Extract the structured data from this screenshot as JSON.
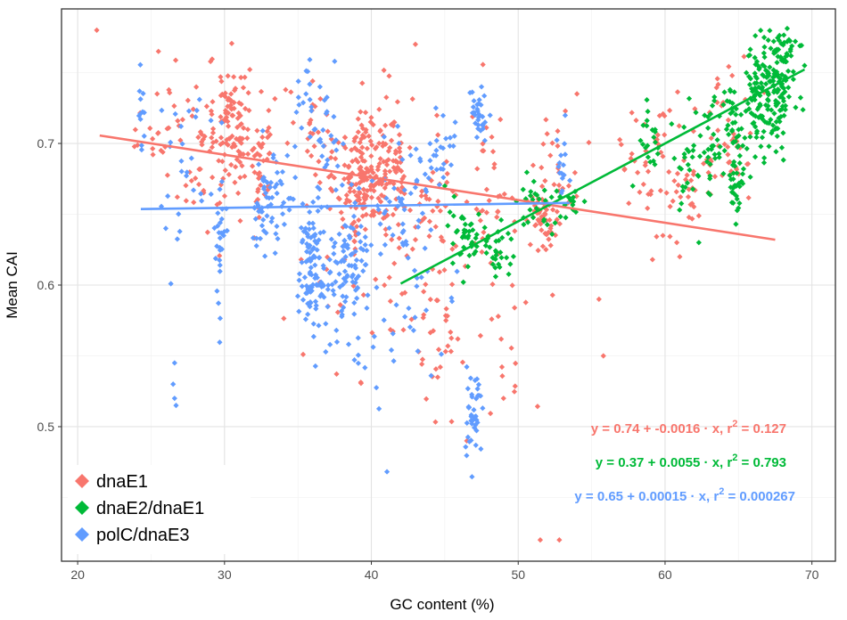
{
  "chart_data": {
    "type": "scatter",
    "xlabel": "GC content (%)",
    "ylabel": "Mean CAI",
    "xlim": [
      18.9,
      71.6
    ],
    "ylim": [
      0.405,
      0.795
    ],
    "x_ticks": [
      20,
      30,
      40,
      50,
      60,
      70
    ],
    "y_ticks": [
      0.5,
      0.6,
      0.7
    ],
    "y_tick_labels": [
      "0.5",
      "0.6",
      "0.7"
    ],
    "grid": true,
    "legend_position": "bottom-left",
    "series": [
      {
        "name": "dnaE1",
        "color": "#F8766D",
        "fit": {
          "intercept": 0.74,
          "slope": -0.0016,
          "x_range": [
            21.5,
            67.5
          ]
        },
        "equation": {
          "y_eq": "y = 0.74 + -0.0016 · x, ",
          "r_label": "r",
          "r_exp": "2",
          "r_val": " = 0.127"
        },
        "clusters": [
          {
            "cx": 30.5,
            "cy": 0.715,
            "sx": 0.6,
            "sy": 0.022,
            "n": 90
          },
          {
            "cx": 28.5,
            "cy": 0.7,
            "sx": 1.4,
            "sy": 0.03,
            "n": 55
          },
          {
            "cx": 32.5,
            "cy": 0.685,
            "sx": 0.4,
            "sy": 0.02,
            "n": 40
          },
          {
            "cx": 39.5,
            "cy": 0.675,
            "sx": 0.9,
            "sy": 0.025,
            "n": 170
          },
          {
            "cx": 41.5,
            "cy": 0.69,
            "sx": 0.6,
            "sy": 0.022,
            "n": 60
          },
          {
            "cx": 36.0,
            "cy": 0.7,
            "sx": 1.0,
            "sy": 0.02,
            "n": 30
          },
          {
            "cx": 44.5,
            "cy": 0.665,
            "sx": 1.2,
            "sy": 0.03,
            "n": 40
          },
          {
            "cx": 48.0,
            "cy": 0.665,
            "sx": 0.6,
            "sy": 0.03,
            "n": 35
          },
          {
            "cx": 51.5,
            "cy": 0.645,
            "sx": 0.6,
            "sy": 0.01,
            "n": 40
          },
          {
            "cx": 52.5,
            "cy": 0.675,
            "sx": 0.8,
            "sy": 0.025,
            "n": 40
          },
          {
            "cx": 42.5,
            "cy": 0.6,
            "sx": 1.2,
            "sy": 0.03,
            "n": 30
          },
          {
            "cx": 45.0,
            "cy": 0.55,
            "sx": 1.0,
            "sy": 0.025,
            "n": 22
          },
          {
            "cx": 49.0,
            "cy": 0.55,
            "sx": 1.0,
            "sy": 0.03,
            "n": 15
          },
          {
            "cx": 25.5,
            "cy": 0.72,
            "sx": 1.0,
            "sy": 0.025,
            "n": 18
          },
          {
            "cx": 58.0,
            "cy": 0.69,
            "sx": 0.6,
            "sy": 0.02,
            "n": 15
          },
          {
            "cx": 61.0,
            "cy": 0.68,
            "sx": 1.2,
            "sy": 0.025,
            "n": 60
          },
          {
            "cx": 64.5,
            "cy": 0.71,
            "sx": 1.0,
            "sy": 0.025,
            "n": 40
          },
          {
            "cx": 37.5,
            "cy": 0.6,
            "sx": 1.5,
            "sy": 0.04,
            "n": 20
          }
        ],
        "points": [
          [
            21.3,
            0.78
          ],
          [
            25.5,
            0.765
          ],
          [
            43.0,
            0.77
          ],
          [
            51.5,
            0.42
          ],
          [
            52.8,
            0.42
          ],
          [
            46.5,
            0.49
          ],
          [
            49.0,
            0.52
          ],
          [
            55.5,
            0.59
          ],
          [
            55.8,
            0.55
          ],
          [
            54.0,
            0.735
          ],
          [
            61.0,
            0.62
          ],
          [
            60.8,
            0.63
          ]
        ]
      },
      {
        "name": "dnaE2/dnaE1",
        "color": "#00BA38",
        "fit": {
          "intercept": 0.37,
          "slope": 0.0055,
          "x_range": [
            42.0,
            69.5
          ]
        },
        "equation": {
          "y_eq": "y = 0.37 + 0.0055 · x, ",
          "r_label": "r",
          "r_exp": "2",
          "r_val": " = 0.793"
        },
        "clusters": [
          {
            "cx": 67.5,
            "cy": 0.74,
            "sx": 0.7,
            "sy": 0.02,
            "n": 130
          },
          {
            "cx": 66.0,
            "cy": 0.725,
            "sx": 0.6,
            "sy": 0.02,
            "n": 60
          },
          {
            "cx": 68.3,
            "cy": 0.765,
            "sx": 0.4,
            "sy": 0.01,
            "n": 25
          },
          {
            "cx": 64.5,
            "cy": 0.705,
            "sx": 0.5,
            "sy": 0.02,
            "n": 40
          },
          {
            "cx": 63.0,
            "cy": 0.7,
            "sx": 0.5,
            "sy": 0.02,
            "n": 25
          },
          {
            "cx": 61.5,
            "cy": 0.685,
            "sx": 0.5,
            "sy": 0.02,
            "n": 25
          },
          {
            "cx": 64.8,
            "cy": 0.67,
            "sx": 0.3,
            "sy": 0.012,
            "n": 22
          },
          {
            "cx": 59.0,
            "cy": 0.7,
            "sx": 0.4,
            "sy": 0.012,
            "n": 20
          },
          {
            "cx": 46.5,
            "cy": 0.635,
            "sx": 0.7,
            "sy": 0.015,
            "n": 40
          },
          {
            "cx": 48.5,
            "cy": 0.625,
            "sx": 0.6,
            "sy": 0.012,
            "n": 30
          },
          {
            "cx": 51.0,
            "cy": 0.655,
            "sx": 0.8,
            "sy": 0.012,
            "n": 25
          },
          {
            "cx": 53.5,
            "cy": 0.66,
            "sx": 0.5,
            "sy": 0.01,
            "n": 15
          }
        ],
        "points": [
          [
            62.3,
            0.63
          ],
          [
            57.8,
            0.67
          ],
          [
            69.5,
            0.755
          ],
          [
            45.0,
            0.67
          ]
        ]
      },
      {
        "name": "polC/dnaE3",
        "color": "#619CFF",
        "fit": {
          "intercept": 0.65,
          "slope": 0.00015,
          "x_range": [
            24.3,
            53.5
          ]
        },
        "equation": {
          "y_eq": "y = 0.65 + 0.00015 · x, ",
          "r_label": "r",
          "r_exp": "2",
          "r_val": " = 0.000267"
        },
        "clusters": [
          {
            "cx": 24.3,
            "cy": 0.72,
            "sx": 0.15,
            "sy": 0.015,
            "n": 12
          },
          {
            "cx": 27.5,
            "cy": 0.685,
            "sx": 1.2,
            "sy": 0.03,
            "n": 25
          },
          {
            "cx": 29.7,
            "cy": 0.63,
            "sx": 0.3,
            "sy": 0.03,
            "n": 30
          },
          {
            "cx": 33.5,
            "cy": 0.66,
            "sx": 0.7,
            "sy": 0.02,
            "n": 45
          },
          {
            "cx": 32.5,
            "cy": 0.65,
            "sx": 0.5,
            "sy": 0.015,
            "n": 20
          },
          {
            "cx": 36.0,
            "cy": 0.61,
            "sx": 0.5,
            "sy": 0.025,
            "n": 110
          },
          {
            "cx": 38.5,
            "cy": 0.615,
            "sx": 0.6,
            "sy": 0.025,
            "n": 90
          },
          {
            "cx": 36.8,
            "cy": 0.71,
            "sx": 0.8,
            "sy": 0.02,
            "n": 30
          },
          {
            "cx": 35.5,
            "cy": 0.735,
            "sx": 0.3,
            "sy": 0.01,
            "n": 10
          },
          {
            "cx": 42.0,
            "cy": 0.66,
            "sx": 1.0,
            "sy": 0.02,
            "n": 40
          },
          {
            "cx": 44.5,
            "cy": 0.69,
            "sx": 0.8,
            "sy": 0.015,
            "n": 30
          },
          {
            "cx": 47.3,
            "cy": 0.72,
            "sx": 0.3,
            "sy": 0.01,
            "n": 30
          },
          {
            "cx": 47.0,
            "cy": 0.51,
            "sx": 0.3,
            "sy": 0.015,
            "n": 40
          },
          {
            "cx": 43.5,
            "cy": 0.58,
            "sx": 1.2,
            "sy": 0.03,
            "n": 20
          },
          {
            "cx": 53.0,
            "cy": 0.68,
            "sx": 0.3,
            "sy": 0.012,
            "n": 15
          },
          {
            "cx": 40.5,
            "cy": 0.56,
            "sx": 1.0,
            "sy": 0.03,
            "n": 15
          }
        ],
        "points": [
          [
            26.6,
            0.545
          ],
          [
            26.6,
            0.52
          ],
          [
            26.7,
            0.515
          ],
          [
            26.5,
            0.53
          ],
          [
            37.5,
            0.758
          ],
          [
            47.5,
            0.74
          ],
          [
            26.0,
            0.64
          ]
        ]
      }
    ]
  }
}
